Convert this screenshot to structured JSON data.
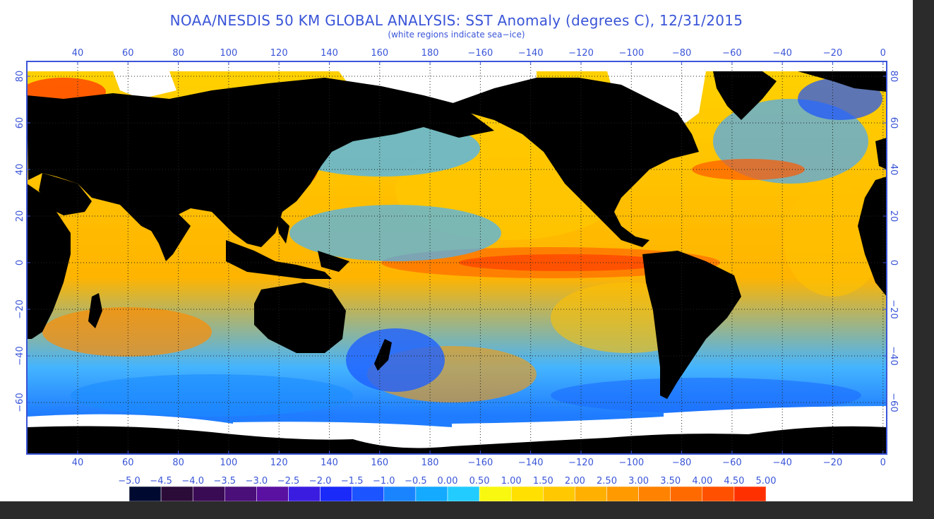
{
  "title": "NOAA/NESDIS 50 KM GLOBAL ANALYSIS: SST Anomaly (degrees C), 12/31/2015",
  "subtitle": "(white regions indicate sea−ice)",
  "map": {
    "projection": "equirectangular",
    "lon_labels": [
      "40",
      "60",
      "80",
      "100",
      "120",
      "140",
      "160",
      "180",
      "−160",
      "−140",
      "−120",
      "−100",
      "−80",
      "−60",
      "−40",
      "−20",
      "0"
    ],
    "lat_labels": [
      "80",
      "60",
      "40",
      "20",
      "0",
      "−20",
      "−40",
      "−60"
    ],
    "colors": {
      "land": "#000000",
      "ice": "#ffffff",
      "border": "#3a55d8",
      "grid": "#222222"
    }
  },
  "colorbar": {
    "labels": [
      "−5.0",
      "−4.5",
      "−4.0",
      "−3.5",
      "−3.0",
      "−2.5",
      "−2.0",
      "−1.5",
      "−1.0",
      "−0.5",
      "0.00",
      "0.50",
      "1.00",
      "1.50",
      "2.00",
      "2.50",
      "3.00",
      "3.50",
      "4.00",
      "4.50",
      "5.00"
    ],
    "colors": [
      "#000a30",
      "#2b0b38",
      "#3a0b55",
      "#4a0f78",
      "#5a10a0",
      "#3a1ce0",
      "#1a2af8",
      "#1c55ff",
      "#1a84ff",
      "#13aaff",
      "#22ccff",
      "#f8f810",
      "#ffe000",
      "#ffc800",
      "#ffb000",
      "#ff9a00",
      "#ff8200",
      "#ff6a00",
      "#ff5000",
      "#ff3000",
      "#ff1500"
    ]
  }
}
